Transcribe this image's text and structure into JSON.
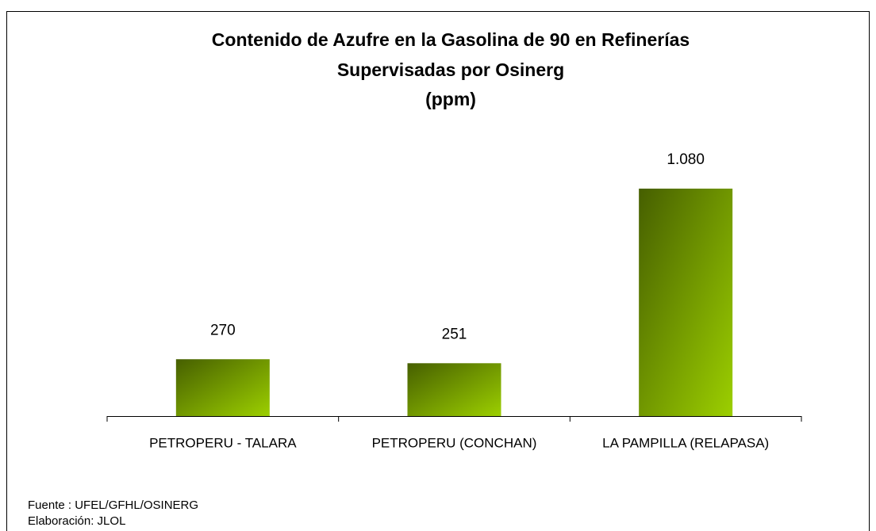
{
  "chart_data": {
    "type": "bar",
    "title": [
      "Contenido de Azufre en la Gasolina de 90 en Refinerías",
      "Supervisadas por Osinerg",
      "(ppm)"
    ],
    "categories": [
      "PETROPERU - TALARA",
      "PETROPERU (CONCHAN)",
      "LA PAMPILLA (RELAPASA)"
    ],
    "values": [
      270,
      251,
      1080
    ],
    "value_labels": [
      "270",
      "251",
      "1.080"
    ],
    "notes": [
      "Fuente : UFEL/GFHL/OSINERG",
      "Elaboración: JLOL"
    ]
  }
}
